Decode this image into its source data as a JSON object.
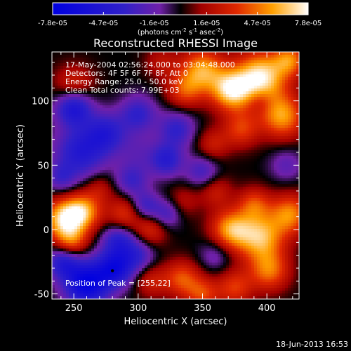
{
  "colorbar": {
    "tick_labels": [
      "-7.8e-05",
      "-4.7e-05",
      "-1.6e-05",
      "1.6e-05",
      "4.7e-05",
      "7.8e-05"
    ],
    "unit_main": "(photons cm",
    "unit_sup1": "-2",
    "unit_mid": " s",
    "unit_sup2": "-1",
    "unit_end": " asec",
    "unit_sup3": "-2",
    "unit_close": ")"
  },
  "chart_data": {
    "type": "heatmap",
    "title": "Reconstructed RHESSI Image",
    "xlabel": "Heliocentric X (arcsec)",
    "ylabel": "Heliocentric Y (arcsec)",
    "xlim": [
      233,
      425
    ],
    "ylim": [
      -54,
      138
    ],
    "xticks": [
      250,
      300,
      350,
      400
    ],
    "yticks": [
      -50,
      0,
      50,
      100
    ],
    "xtick_labels": [
      "250",
      "300",
      "350",
      "400"
    ],
    "ytick_labels": [
      "-50",
      "0",
      "50",
      "100"
    ],
    "zlim": [
      -7.8e-05,
      7.8e-05
    ],
    "info_lines": [
      "17-May-2004 02:56:24.000 to 03:04:48.000",
      "Detectors: 4F 5F 6F 7F 8F, Att 0",
      "Energy Range: 25.0 - 50.0 keV",
      "Clean     Total counts: 7.99E+03"
    ],
    "peak_label": "Position of Peak = [255,22]",
    "peak_marker": {
      "x": 280,
      "y": -32
    },
    "blobs": [
      {
        "x": 395,
        "y": 118,
        "a": 7.5e-05,
        "s": 14
      },
      {
        "x": 372,
        "y": 108,
        "a": 6.5e-05,
        "s": 11
      },
      {
        "x": 350,
        "y": 124,
        "a": 5.5e-05,
        "s": 12
      },
      {
        "x": 412,
        "y": 88,
        "a": 5.5e-05,
        "s": 12
      },
      {
        "x": 418,
        "y": 132,
        "a": 4.5e-05,
        "s": 9
      },
      {
        "x": 336,
        "y": 108,
        "a": 3.5e-05,
        "s": 10
      },
      {
        "x": 380,
        "y": 78,
        "a": 3.5e-05,
        "s": 10
      },
      {
        "x": 358,
        "y": 66,
        "a": 2.5e-05,
        "s": 9
      },
      {
        "x": 318,
        "y": 130,
        "a": 2e-05,
        "s": 9
      },
      {
        "x": 242,
        "y": 8,
        "a": 6.5e-05,
        "s": 11
      },
      {
        "x": 257,
        "y": 14,
        "a": 5.5e-05,
        "s": 10
      },
      {
        "x": 248,
        "y": -10,
        "a": 4e-05,
        "s": 9
      },
      {
        "x": 290,
        "y": 12,
        "a": 3.5e-05,
        "s": 10
      },
      {
        "x": 310,
        "y": 0,
        "a": 3e-05,
        "s": 9
      },
      {
        "x": 270,
        "y": 32,
        "a": 2e-05,
        "s": 8
      },
      {
        "x": 395,
        "y": -6,
        "a": 6e-05,
        "s": 13
      },
      {
        "x": 372,
        "y": 0,
        "a": 5.5e-05,
        "s": 11
      },
      {
        "x": 418,
        "y": 12,
        "a": 5e-05,
        "s": 11
      },
      {
        "x": 402,
        "y": -32,
        "a": 4.5e-05,
        "s": 11
      },
      {
        "x": 390,
        "y": 20,
        "a": 3.5e-05,
        "s": 9
      },
      {
        "x": 360,
        "y": 30,
        "a": 2.5e-05,
        "s": 9
      },
      {
        "x": 334,
        "y": -38,
        "a": 4e-05,
        "s": 10
      },
      {
        "x": 350,
        "y": -50,
        "a": 3.5e-05,
        "s": 9
      },
      {
        "x": 375,
        "y": -45,
        "a": 3.5e-05,
        "s": 10
      },
      {
        "x": 310,
        "y": -40,
        "a": 2.5e-05,
        "s": 9
      },
      {
        "x": 335,
        "y": 22,
        "a": 1.8e-05,
        "s": 9
      },
      {
        "x": 250,
        "y": 112,
        "a": 3e-05,
        "s": 11
      },
      {
        "x": 300,
        "y": 60,
        "a": -1.5e-05,
        "s": 11
      },
      {
        "x": 255,
        "y": 60,
        "a": -4.5e-05,
        "s": 14
      },
      {
        "x": 250,
        "y": 95,
        "a": -5.5e-05,
        "s": 10
      },
      {
        "x": 275,
        "y": 75,
        "a": -4e-05,
        "s": 11
      },
      {
        "x": 300,
        "y": 90,
        "a": -3.5e-05,
        "s": 10
      },
      {
        "x": 295,
        "y": 38,
        "a": -3e-05,
        "s": 9
      },
      {
        "x": 330,
        "y": 78,
        "a": -3.5e-05,
        "s": 10
      },
      {
        "x": 322,
        "y": 54,
        "a": -4e-05,
        "s": 9
      },
      {
        "x": 350,
        "y": 45,
        "a": -3e-05,
        "s": 9
      },
      {
        "x": 305,
        "y": 18,
        "a": -3.5e-05,
        "s": 8
      },
      {
        "x": 322,
        "y": 12,
        "a": -3e-05,
        "s": 8
      },
      {
        "x": 260,
        "y": -42,
        "a": -7.5e-05,
        "s": 12
      },
      {
        "x": 282,
        "y": -30,
        "a": -6e-05,
        "s": 10
      },
      {
        "x": 285,
        "y": -8,
        "a": -4e-05,
        "s": 9
      },
      {
        "x": 242,
        "y": -25,
        "a": -4.5e-05,
        "s": 9
      },
      {
        "x": 300,
        "y": -20,
        "a": -3e-05,
        "s": 9
      },
      {
        "x": 240,
        "y": 40,
        "a": -2.5e-05,
        "s": 8
      },
      {
        "x": 415,
        "y": 50,
        "a": -2e-05,
        "s": 9
      },
      {
        "x": 360,
        "y": -20,
        "a": -2e-05,
        "s": 9
      },
      {
        "x": 395,
        "y": 100,
        "a": -1.5e-05,
        "s": 7
      }
    ]
  },
  "timestamp": "18-Jun-2013 16:53"
}
